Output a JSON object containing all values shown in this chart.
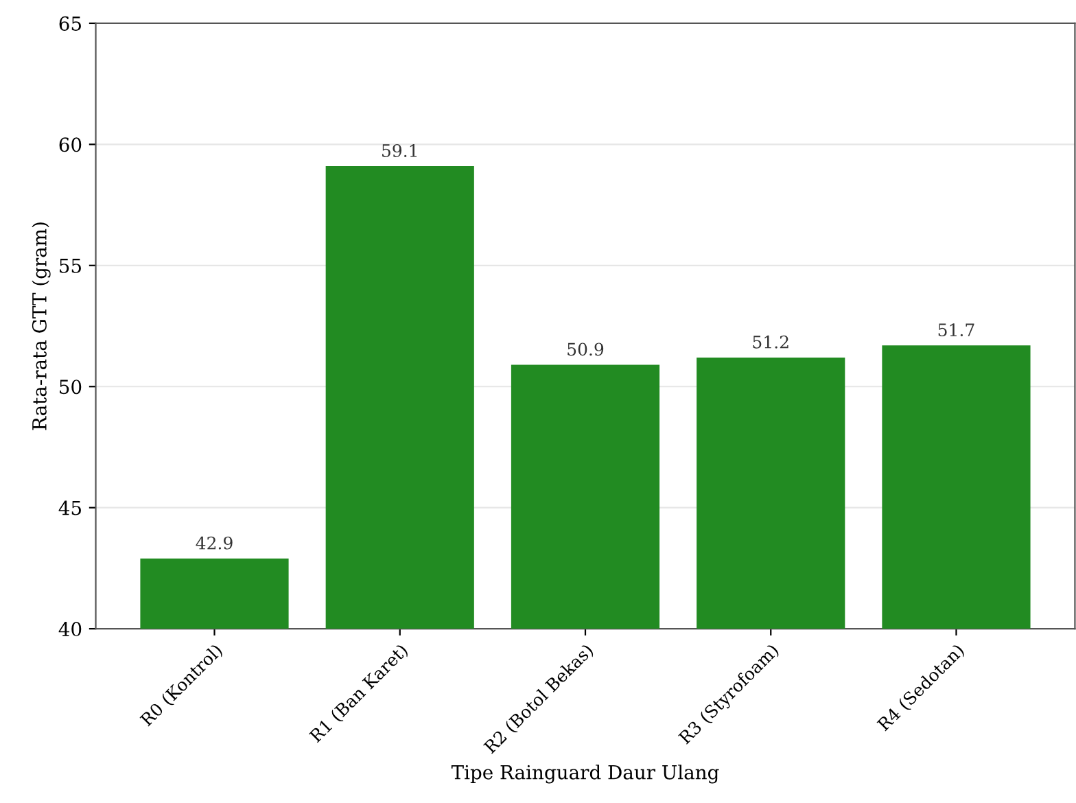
{
  "chart_data": {
    "type": "bar",
    "xlabel": "Tipe Rainguard Daur Ulang",
    "ylabel": "Rata-rata GTT (gram)",
    "categories": [
      "R0 (Kontrol)",
      "R1 (Ban Karet)",
      "R2 (Botol Bekas)",
      "R3 (Styrofoam)",
      "R4 (Sedotan)"
    ],
    "values": [
      42.9,
      59.1,
      50.9,
      51.2,
      51.7
    ],
    "color": "#228b22",
    "ylim": [
      40,
      65
    ],
    "yticks": [
      40,
      45,
      50,
      55,
      60,
      65
    ],
    "grid": "y",
    "data_labels": true
  }
}
